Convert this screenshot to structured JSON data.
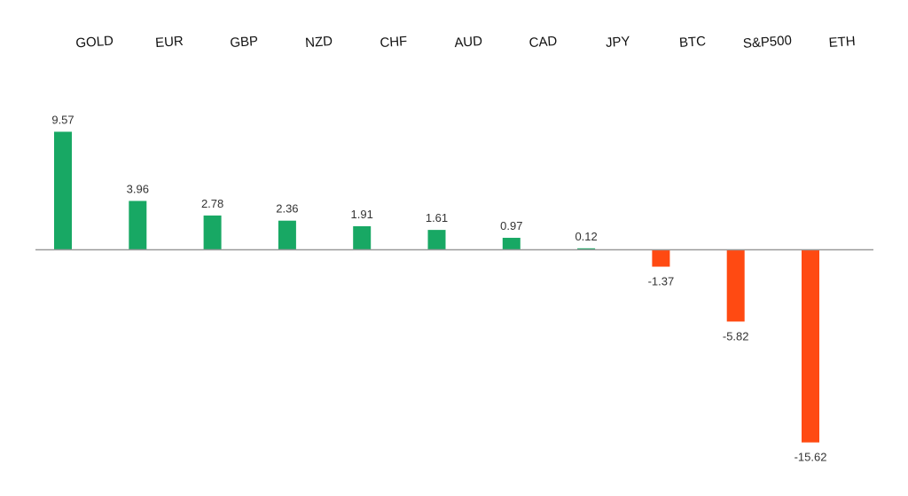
{
  "chart_data": {
    "type": "bar",
    "title": "",
    "xlabel": "",
    "ylabel": "",
    "categories": [
      "GOLD",
      "EUR",
      "GBP",
      "NZD",
      "CHF",
      "AUD",
      "CAD",
      "JPY",
      "BTC",
      "S&P500",
      "ETH"
    ],
    "values": [
      9.57,
      3.96,
      2.78,
      2.36,
      1.91,
      1.61,
      0.97,
      0.12,
      -1.37,
      -5.82,
      -15.62
    ],
    "value_labels": [
      "9.57",
      "3.96",
      "2.78",
      "2.36",
      "1.91",
      "1.61",
      "0.97",
      "0.12",
      "-1.37",
      "-5.82",
      "-15.62"
    ],
    "category_labels_position": "top",
    "grid": false,
    "legend": "none",
    "colors": {
      "positive": "#18a864",
      "negative": "#ff4a12",
      "axis": "#9a9a9a"
    }
  }
}
